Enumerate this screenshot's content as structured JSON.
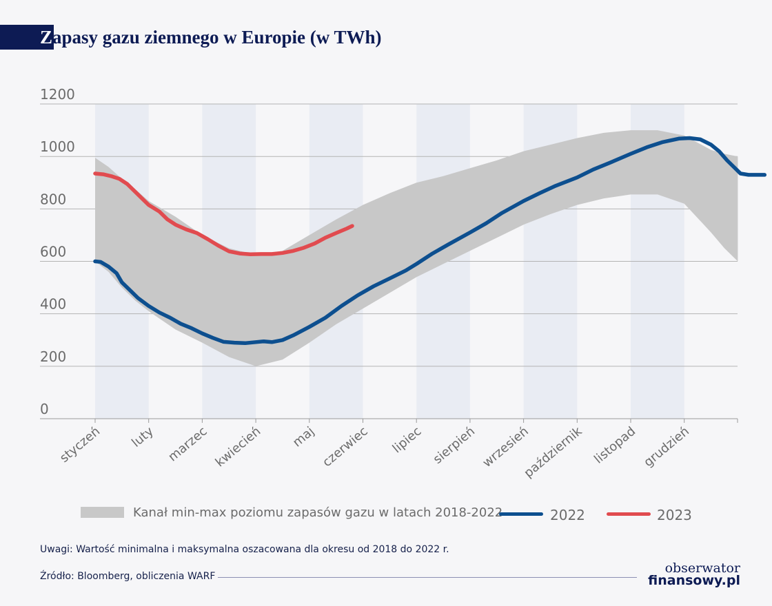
{
  "title": {
    "first": "Z",
    "rest": "apasy gazu ziemnego w Europie (w TWh)"
  },
  "chart_data": {
    "type": "line",
    "title": "Zapasy gazu ziemnego w Europie (w TWh)",
    "ylim": [
      0,
      1200
    ],
    "y_ticks": [
      "0",
      "200",
      "400",
      "600",
      "800",
      "1000",
      "1200"
    ],
    "categories": [
      "styczeń",
      "luty",
      "marzec",
      "kwiecień",
      "maj",
      "czerwiec",
      "lipiec",
      "sierpień",
      "wrzesień",
      "październik",
      "listopad",
      "grudzień"
    ],
    "grid": "horizontal",
    "legend_position": "bottom",
    "band": {
      "name": "Kanał min-max poziomu zapasów gazu w latach 2018-2022",
      "color": "#c8c8c8",
      "points": [
        {
          "m": 0.0,
          "min": 600,
          "max": 995
        },
        {
          "m": 0.25,
          "min": 560,
          "max": 960
        },
        {
          "m": 0.5,
          "min": 500,
          "max": 915
        },
        {
          "m": 0.75,
          "min": 450,
          "max": 875
        },
        {
          "m": 1.0,
          "min": 410,
          "max": 830
        },
        {
          "m": 1.5,
          "min": 340,
          "max": 770
        },
        {
          "m": 2.0,
          "min": 290,
          "max": 700
        },
        {
          "m": 2.5,
          "min": 235,
          "max": 650
        },
        {
          "m": 3.0,
          "min": 200,
          "max": 625
        },
        {
          "m": 3.5,
          "min": 225,
          "max": 640
        },
        {
          "m": 4.0,
          "min": 290,
          "max": 700
        },
        {
          "m": 4.5,
          "min": 360,
          "max": 760
        },
        {
          "m": 5.0,
          "min": 420,
          "max": 815
        },
        {
          "m": 5.5,
          "min": 480,
          "max": 860
        },
        {
          "m": 6.0,
          "min": 540,
          "max": 900
        },
        {
          "m": 6.5,
          "min": 590,
          "max": 925
        },
        {
          "m": 7.0,
          "min": 640,
          "max": 955
        },
        {
          "m": 7.5,
          "min": 690,
          "max": 985
        },
        {
          "m": 8.0,
          "min": 740,
          "max": 1020
        },
        {
          "m": 8.5,
          "min": 780,
          "max": 1045
        },
        {
          "m": 9.0,
          "min": 815,
          "max": 1070
        },
        {
          "m": 9.5,
          "min": 840,
          "max": 1090
        },
        {
          "m": 10.0,
          "min": 855,
          "max": 1100
        },
        {
          "m": 10.5,
          "min": 855,
          "max": 1100
        },
        {
          "m": 11.0,
          "min": 820,
          "max": 1080
        },
        {
          "m": 11.5,
          "min": 710,
          "max": 1025
        },
        {
          "m": 11.75,
          "min": 650,
          "max": 1010
        },
        {
          "m": 12.0,
          "min": 600,
          "max": 1000
        }
      ]
    },
    "series": [
      {
        "name": "2022",
        "color": "#0d4f8f",
        "points": [
          {
            "m": 0.0,
            "v": 600
          },
          {
            "m": 0.1,
            "v": 598
          },
          {
            "m": 0.25,
            "v": 580
          },
          {
            "m": 0.4,
            "v": 555
          },
          {
            "m": 0.5,
            "v": 520
          },
          {
            "m": 0.65,
            "v": 490
          },
          {
            "m": 0.8,
            "v": 460
          },
          {
            "m": 1.0,
            "v": 430
          },
          {
            "m": 1.2,
            "v": 405
          },
          {
            "m": 1.4,
            "v": 385
          },
          {
            "m": 1.6,
            "v": 362
          },
          {
            "m": 1.8,
            "v": 345
          },
          {
            "m": 2.0,
            "v": 325
          },
          {
            "m": 2.2,
            "v": 308
          },
          {
            "m": 2.4,
            "v": 293
          },
          {
            "m": 2.6,
            "v": 290
          },
          {
            "m": 2.8,
            "v": 288
          },
          {
            "m": 3.0,
            "v": 292
          },
          {
            "m": 3.15,
            "v": 295
          },
          {
            "m": 3.3,
            "v": 292
          },
          {
            "m": 3.5,
            "v": 300
          },
          {
            "m": 3.7,
            "v": 318
          },
          {
            "m": 4.0,
            "v": 350
          },
          {
            "m": 4.3,
            "v": 385
          },
          {
            "m": 4.6,
            "v": 430
          },
          {
            "m": 4.9,
            "v": 470
          },
          {
            "m": 5.2,
            "v": 505
          },
          {
            "m": 5.5,
            "v": 535
          },
          {
            "m": 5.8,
            "v": 565
          },
          {
            "m": 6.0,
            "v": 590
          },
          {
            "m": 6.3,
            "v": 630
          },
          {
            "m": 6.6,
            "v": 665
          },
          {
            "m": 7.0,
            "v": 710
          },
          {
            "m": 7.3,
            "v": 745
          },
          {
            "m": 7.6,
            "v": 785
          },
          {
            "m": 8.0,
            "v": 830
          },
          {
            "m": 8.3,
            "v": 860
          },
          {
            "m": 8.6,
            "v": 888
          },
          {
            "m": 9.0,
            "v": 920
          },
          {
            "m": 9.3,
            "v": 950
          },
          {
            "m": 9.6,
            "v": 975
          },
          {
            "m": 10.0,
            "v": 1010
          },
          {
            "m": 10.3,
            "v": 1035
          },
          {
            "m": 10.6,
            "v": 1055
          },
          {
            "m": 10.9,
            "v": 1068
          },
          {
            "m": 11.1,
            "v": 1070
          },
          {
            "m": 11.3,
            "v": 1065
          },
          {
            "m": 11.5,
            "v": 1045
          },
          {
            "m": 11.65,
            "v": 1020
          },
          {
            "m": 11.8,
            "v": 985
          },
          {
            "m": 11.95,
            "v": 955
          },
          {
            "m": 12.05,
            "v": 935
          },
          {
            "m": 12.2,
            "v": 930
          },
          {
            "m": 12.5,
            "v": 930
          }
        ]
      },
      {
        "name": "2023",
        "color": "#e14b4f",
        "points": [
          {
            "m": 0.0,
            "v": 935
          },
          {
            "m": 0.15,
            "v": 932
          },
          {
            "m": 0.3,
            "v": 925
          },
          {
            "m": 0.45,
            "v": 915
          },
          {
            "m": 0.6,
            "v": 895
          },
          {
            "m": 0.75,
            "v": 865
          },
          {
            "m": 0.9,
            "v": 835
          },
          {
            "m": 1.0,
            "v": 815
          },
          {
            "m": 1.2,
            "v": 790
          },
          {
            "m": 1.35,
            "v": 760
          },
          {
            "m": 1.5,
            "v": 740
          },
          {
            "m": 1.7,
            "v": 722
          },
          {
            "m": 1.9,
            "v": 708
          },
          {
            "m": 2.1,
            "v": 685
          },
          {
            "m": 2.3,
            "v": 660
          },
          {
            "m": 2.5,
            "v": 638
          },
          {
            "m": 2.7,
            "v": 630
          },
          {
            "m": 2.9,
            "v": 627
          },
          {
            "m": 3.1,
            "v": 628
          },
          {
            "m": 3.3,
            "v": 628
          },
          {
            "m": 3.5,
            "v": 632
          },
          {
            "m": 3.7,
            "v": 640
          },
          {
            "m": 3.9,
            "v": 652
          },
          {
            "m": 4.1,
            "v": 668
          },
          {
            "m": 4.3,
            "v": 690
          },
          {
            "m": 4.5,
            "v": 708
          },
          {
            "m": 4.7,
            "v": 725
          },
          {
            "m": 4.8,
            "v": 735
          }
        ]
      }
    ]
  },
  "legend": {
    "band_label": "Kanał min-max poziomu zapasów gazu w latach 2018-2022",
    "s2022_label": "2022",
    "s2023_label": "2023"
  },
  "note": "Uwagi: Wartość minimalna i maksymalna oszacowana dla okresu od 2018 do 2022 r.",
  "source": "Źródło: Bloomberg, obliczenia WARF",
  "logo": {
    "line1": "obserwator",
    "line2": "finansowy.pl"
  }
}
